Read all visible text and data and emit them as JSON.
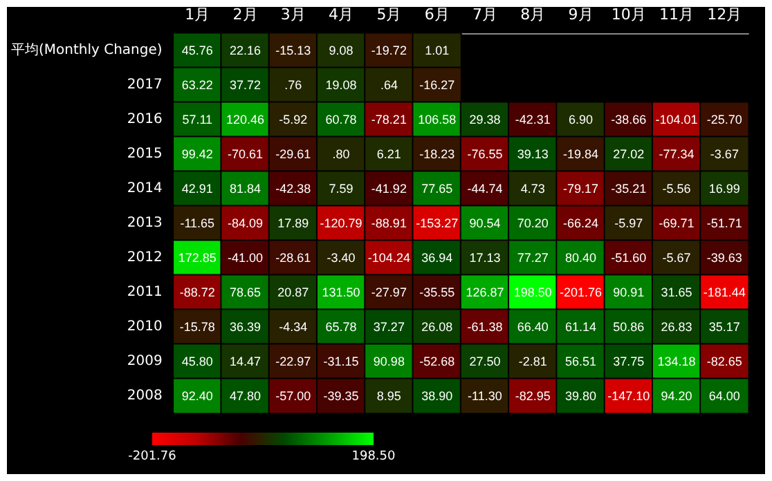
{
  "chart_data": {
    "type": "heatmap",
    "categories": [
      "1月",
      "2月",
      "3月",
      "4月",
      "5月",
      "6月",
      "7月",
      "8月",
      "9月",
      "10月",
      "11月",
      "12月"
    ],
    "y_categories": [
      "平均(Monthly Change)",
      "2017",
      "2016",
      "2015",
      "2014",
      "2013",
      "2012",
      "2011",
      "2010",
      "2009",
      "2008"
    ],
    "cells": [
      [
        45.76,
        22.16,
        -15.13,
        9.08,
        -19.72,
        1.01,
        null,
        null,
        null,
        null,
        null,
        null
      ],
      [
        63.22,
        37.72,
        0.76,
        19.08,
        0.64,
        -16.27,
        null,
        null,
        null,
        null,
        null,
        null
      ],
      [
        57.11,
        120.46,
        -5.92,
        60.78,
        -78.21,
        106.58,
        29.38,
        -42.31,
        6.9,
        -38.66,
        -104.01,
        -25.7
      ],
      [
        99.42,
        -70.61,
        -29.61,
        0.8,
        6.21,
        -18.23,
        -76.55,
        39.13,
        -19.84,
        27.02,
        -77.34,
        -3.67
      ],
      [
        42.91,
        81.84,
        -42.38,
        7.59,
        -41.92,
        77.65,
        -44.74,
        4.73,
        -79.17,
        -35.21,
        -5.56,
        16.99
      ],
      [
        -11.65,
        -84.09,
        17.89,
        -120.79,
        -88.91,
        -153.27,
        90.54,
        70.2,
        -66.24,
        -5.97,
        -69.71,
        -51.71
      ],
      [
        172.85,
        -41.0,
        -28.61,
        -3.4,
        -104.24,
        36.94,
        17.13,
        77.27,
        80.4,
        -51.6,
        -5.67,
        -39.63
      ],
      [
        -88.72,
        78.65,
        20.87,
        131.5,
        -27.97,
        -35.55,
        126.87,
        198.5,
        -201.76,
        90.91,
        31.65,
        -181.44
      ],
      [
        -15.78,
        36.39,
        -4.34,
        65.78,
        37.27,
        26.08,
        -61.38,
        66.4,
        61.14,
        50.86,
        26.83,
        35.17
      ],
      [
        45.8,
        14.47,
        -22.97,
        -31.15,
        90.98,
        -52.68,
        27.5,
        -2.81,
        56.51,
        37.75,
        134.18,
        -82.65
      ],
      [
        92.4,
        47.8,
        -57.0,
        -39.35,
        8.95,
        38.9,
        -11.3,
        -82.95,
        39.8,
        -147.1,
        94.2,
        64.0
      ]
    ],
    "cell_labels": [
      [
        "45.76",
        "22.16",
        "-15.13",
        "9.08",
        "-19.72",
        "1.01",
        null,
        null,
        null,
        null,
        null,
        null
      ],
      [
        "63.22",
        "37.72",
        ".76",
        "19.08",
        ".64",
        "-16.27",
        null,
        null,
        null,
        null,
        null,
        null
      ],
      [
        "57.11",
        "120.46",
        "-5.92",
        "60.78",
        "-78.21",
        "106.58",
        "29.38",
        "-42.31",
        "6.90",
        "-38.66",
        "-104.01",
        "-25.70"
      ],
      [
        "99.42",
        "-70.61",
        "-29.61",
        ".80",
        "6.21",
        "-18.23",
        "-76.55",
        "39.13",
        "-19.84",
        "27.02",
        "-77.34",
        "-3.67"
      ],
      [
        "42.91",
        "81.84",
        "-42.38",
        "7.59",
        "-41.92",
        "77.65",
        "-44.74",
        "4.73",
        "-79.17",
        "-35.21",
        "-5.56",
        "16.99"
      ],
      [
        "-11.65",
        "-84.09",
        "17.89",
        "-120.79",
        "-88.91",
        "-153.27",
        "90.54",
        "70.20",
        "-66.24",
        "-5.97",
        "-69.71",
        "-51.71"
      ],
      [
        "172.85",
        "-41.00",
        "-28.61",
        "-3.40",
        "-104.24",
        "36.94",
        "17.13",
        "77.27",
        "80.40",
        "-51.60",
        "-5.67",
        "-39.63"
      ],
      [
        "-88.72",
        "78.65",
        "20.87",
        "131.50",
        "-27.97",
        "-35.55",
        "126.87",
        "198.50",
        "-201.76",
        "90.91",
        "31.65",
        "-181.44"
      ],
      [
        "-15.78",
        "36.39",
        "-4.34",
        "65.78",
        "37.27",
        "26.08",
        "-61.38",
        "66.40",
        "61.14",
        "50.86",
        "26.83",
        "35.17"
      ],
      [
        "45.80",
        "14.47",
        "-22.97",
        "-31.15",
        "90.98",
        "-52.68",
        "27.50",
        "-2.81",
        "56.51",
        "37.75",
        "134.18",
        "-82.65"
      ],
      [
        "92.40",
        "47.80",
        "-57.00",
        "-39.35",
        "8.95",
        "38.90",
        "-11.30",
        "-82.95",
        "39.80",
        "-147.10",
        "94.20",
        "64.00"
      ]
    ],
    "clim": [
      -201.76,
      198.5
    ],
    "cticks": [
      {
        "value": -201.76,
        "label": "-201.76"
      },
      {
        "value": 198.5,
        "label": "198.50"
      }
    ]
  }
}
